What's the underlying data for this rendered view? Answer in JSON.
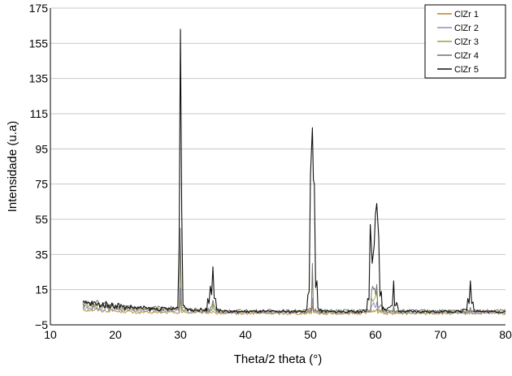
{
  "chart_data": {
    "type": "line",
    "title": "",
    "xlabel": "Theta/2 theta (°)",
    "ylabel": "Intensidade (u.a)",
    "xlim": [
      10,
      80
    ],
    "ylim": [
      -5,
      175
    ],
    "x_ticks": [
      10,
      20,
      30,
      40,
      50,
      60,
      70,
      80
    ],
    "x_tick_labels": [
      "10",
      "20",
      "30",
      "40",
      "50",
      "60",
      "70",
      "80"
    ],
    "y_ticks": [
      -5,
      15,
      35,
      55,
      75,
      95,
      115,
      135,
      155,
      175
    ],
    "y_tick_labels": [
      "−5",
      "15",
      "35",
      "55",
      "75",
      "95",
      "115",
      "135",
      "155",
      "175"
    ],
    "grid": {
      "horizontal": true,
      "vertical": false
    },
    "legend_position": "top-right",
    "series": [
      {
        "name": "ClZr 1",
        "color": "#b5862a",
        "x": [
          15,
          17.5,
          20,
          22.5,
          25,
          27.5,
          29.2,
          30.0,
          30.8,
          33,
          34.6,
          35.0,
          35.4,
          38,
          42,
          46,
          49.5,
          50.3,
          51.2,
          55,
          58,
          59.4,
          60.2,
          61,
          62.3,
          62.8,
          63.3,
          66,
          70,
          73.5,
          74.6,
          75.5,
          78,
          80
        ],
        "y": [
          4,
          3.5,
          3,
          2.5,
          2,
          2,
          2,
          10,
          2,
          2,
          2,
          3,
          2,
          1.5,
          1.5,
          1.5,
          2,
          6,
          2,
          1.5,
          2,
          3,
          4,
          2,
          1.5,
          2,
          1.5,
          1.5,
          1.5,
          1.5,
          2,
          1.5,
          1.5,
          1.5
        ]
      },
      {
        "name": "ClZr 2",
        "color": "#8a8dc4",
        "x": [
          15,
          17.5,
          20,
          22.5,
          25,
          27.5,
          29.2,
          30.0,
          30.8,
          33,
          34.6,
          35.0,
          35.4,
          38,
          42,
          46,
          49.5,
          50.3,
          51.2,
          55,
          58,
          59.4,
          60.2,
          61,
          62.3,
          62.8,
          63.3,
          66,
          70,
          73.5,
          74.6,
          75.5,
          78,
          80
        ],
        "y": [
          5,
          4.5,
          4,
          3.5,
          3,
          3,
          3,
          16,
          3,
          2.5,
          3,
          5,
          3,
          2,
          2,
          2,
          2.5,
          10,
          2.5,
          2,
          2.5,
          6,
          8,
          3,
          2,
          3,
          2,
          2,
          2,
          2,
          3,
          2,
          2,
          2
        ]
      },
      {
        "name": "ClZr 3",
        "color": "#9aa33e",
        "x": [
          15,
          17.5,
          20,
          22.5,
          25,
          27.5,
          29.2,
          30.0,
          30.8,
          33,
          34.6,
          35.0,
          35.4,
          38,
          42,
          46,
          49.5,
          50.3,
          51.2,
          55,
          58,
          59.4,
          60.2,
          61,
          62.3,
          62.8,
          63.3,
          66,
          70,
          73.5,
          74.6,
          75.5,
          78,
          80
        ],
        "y": [
          7,
          6,
          5,
          4.5,
          4,
          4,
          4,
          39,
          4,
          3,
          4,
          7,
          4,
          2.5,
          2.5,
          2.5,
          3,
          25,
          3,
          2.5,
          3,
          10,
          14,
          4,
          2.5,
          4,
          2.5,
          2.5,
          2.5,
          2.5,
          4,
          2.5,
          2.5,
          2.5
        ]
      },
      {
        "name": "ClZr 4",
        "color": "#707070",
        "x": [
          15,
          17.5,
          20,
          22.5,
          25,
          27.5,
          29.2,
          30.0,
          30.8,
          33,
          34.6,
          35.0,
          35.4,
          38,
          42,
          46,
          49.5,
          50.3,
          51.2,
          55,
          58,
          59.4,
          60.2,
          61,
          62.3,
          62.8,
          63.3,
          66,
          70,
          73.5,
          74.6,
          75.5,
          78,
          80
        ],
        "y": [
          8,
          7,
          6,
          5,
          4.5,
          4.5,
          4.5,
          50,
          4.5,
          3.5,
          5,
          9,
          5,
          3,
          3,
          3,
          3.5,
          30,
          3.5,
          3,
          3.5,
          14,
          18,
          5,
          3,
          6,
          3,
          3,
          3,
          3,
          5,
          3,
          3,
          3
        ]
      },
      {
        "name": "ClZr 5",
        "color": "#111111",
        "x": [
          15,
          17,
          19,
          21,
          23,
          25,
          27,
          28.5,
          29.4,
          29.8,
          30.0,
          30.2,
          30.6,
          31.5,
          33,
          34.2,
          34.6,
          35.0,
          35.4,
          35.8,
          37,
          40,
          43,
          46,
          48.5,
          49.6,
          50.0,
          50.3,
          50.6,
          51.0,
          51.6,
          53,
          56,
          58,
          58.8,
          59.2,
          59.5,
          59.8,
          60.0,
          60.2,
          60.5,
          60.9,
          61.5,
          62.2,
          62.8,
          63.4,
          65,
          68,
          71,
          73.5,
          74.2,
          74.6,
          75.0,
          76,
          78,
          80
        ],
        "y": [
          8,
          7,
          6.5,
          6,
          5,
          4.5,
          4,
          4,
          5,
          40,
          163,
          60,
          6,
          4,
          3.5,
          10,
          17,
          28,
          10,
          4,
          3,
          2.5,
          2.5,
          2.5,
          3,
          12,
          80,
          107,
          75,
          20,
          4,
          2.5,
          2.5,
          3,
          10,
          52,
          30,
          40,
          58,
          64,
          45,
          14,
          4,
          5,
          20,
          6,
          2.5,
          2.5,
          2.5,
          4,
          10,
          20,
          8,
          3,
          2.5,
          2.5
        ]
      }
    ]
  }
}
